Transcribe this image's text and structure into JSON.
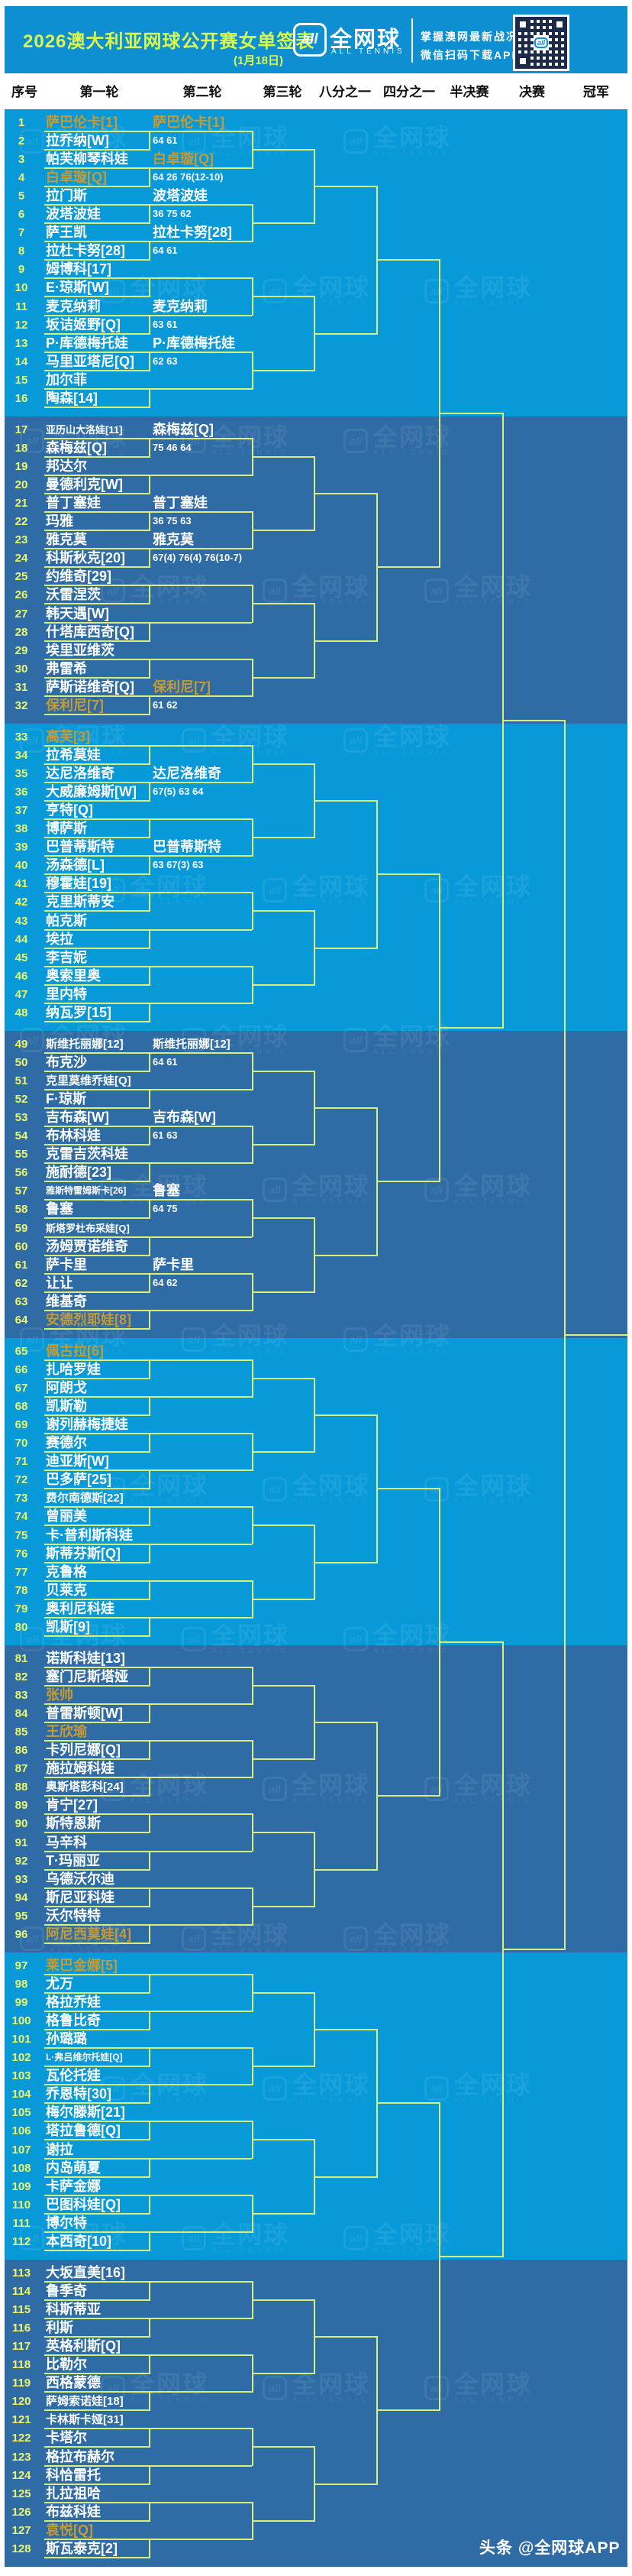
{
  "meta": {
    "title": "2026澳大利亚网球公开赛女单签表",
    "date_note": "(1月18日)"
  },
  "logo": {
    "icon": "all",
    "brand": "全网球",
    "brand_sub": "ALL TENNIS",
    "tagline1": "掌握澳网最新战况",
    "tagline2": "微信扫码下载APP"
  },
  "footer": {
    "credit": "头条 @全网球APP"
  },
  "columns": [
    "序号",
    "第一轮",
    "第二轮",
    "第三轮",
    "八分之一",
    "四分之一",
    "半决赛",
    "决赛",
    "冠军"
  ],
  "colors": {
    "header_bg": "#0d8fd1",
    "band_light": "#0899d8",
    "band_dark": "#2f6ca6",
    "line": "#d9ef7d",
    "number": "#eef767",
    "text": "#ffffff",
    "gold": "#c79b31",
    "title": "#dcf84a",
    "column_text": "#111111"
  },
  "bracket": {
    "players": [
      {
        "n": 1,
        "name": "萨巴伦卡[1]",
        "gold": true
      },
      {
        "n": 2,
        "name": "拉乔纳[W]",
        "gold": false
      },
      {
        "n": 3,
        "name": "帕芙柳琴科娃",
        "gold": false
      },
      {
        "n": 4,
        "name": "白卓璇[Q]",
        "gold": true
      },
      {
        "n": 5,
        "name": "拉门斯",
        "gold": false
      },
      {
        "n": 6,
        "name": "波塔波娃",
        "gold": false
      },
      {
        "n": 7,
        "name": "萨王凯",
        "gold": false
      },
      {
        "n": 8,
        "name": "拉杜卡努[28]",
        "gold": false
      },
      {
        "n": 9,
        "name": "姆博科[17]",
        "gold": false
      },
      {
        "n": 10,
        "name": "E·琼斯[W]",
        "gold": false
      },
      {
        "n": 11,
        "name": "麦克纳莉",
        "gold": false
      },
      {
        "n": 12,
        "name": "坂诘姬野[Q]",
        "gold": false
      },
      {
        "n": 13,
        "name": "P·库德梅托娃",
        "gold": false
      },
      {
        "n": 14,
        "name": "马里亚塔尼[Q]",
        "gold": false
      },
      {
        "n": 15,
        "name": "加尔菲",
        "gold": false
      },
      {
        "n": 16,
        "name": "陶森[14]",
        "gold": false
      },
      {
        "n": 17,
        "name": "亚历山大洛娃[11]",
        "gold": false
      },
      {
        "n": 18,
        "name": "森梅兹[Q]",
        "gold": false
      },
      {
        "n": 19,
        "name": "邦达尔",
        "gold": false
      },
      {
        "n": 20,
        "name": "曼德利克[W]",
        "gold": false
      },
      {
        "n": 21,
        "name": "普丁塞娃",
        "gold": false
      },
      {
        "n": 22,
        "name": "玛雅",
        "gold": false
      },
      {
        "n": 23,
        "name": "雅克莫",
        "gold": false
      },
      {
        "n": 24,
        "name": "科斯秋克[20]",
        "gold": false
      },
      {
        "n": 25,
        "name": "约维奇[29]",
        "gold": false
      },
      {
        "n": 26,
        "name": "沃雷涅茨",
        "gold": false
      },
      {
        "n": 27,
        "name": "韩天遇[W]",
        "gold": false
      },
      {
        "n": 28,
        "name": "什塔库西奇[Q]",
        "gold": false
      },
      {
        "n": 29,
        "name": "埃里亚维茨",
        "gold": false
      },
      {
        "n": 30,
        "name": "弗雷希",
        "gold": false
      },
      {
        "n": 31,
        "name": "萨斯诺维奇[Q]",
        "gold": false
      },
      {
        "n": 32,
        "name": "保利尼[7]",
        "gold": true
      },
      {
        "n": 33,
        "name": "高芙[3]",
        "gold": true
      },
      {
        "n": 34,
        "name": "拉希莫娃",
        "gold": false
      },
      {
        "n": 35,
        "name": "达尼洛维奇",
        "gold": false
      },
      {
        "n": 36,
        "name": "大威廉姆斯[W]",
        "gold": false
      },
      {
        "n": 37,
        "name": "亨特[Q]",
        "gold": false
      },
      {
        "n": 38,
        "name": "博萨斯",
        "gold": false
      },
      {
        "n": 39,
        "name": "巴普蒂斯特",
        "gold": false
      },
      {
        "n": 40,
        "name": "汤森德[L]",
        "gold": false
      },
      {
        "n": 41,
        "name": "穆霍娃[19]",
        "gold": false
      },
      {
        "n": 42,
        "name": "克里斯蒂安",
        "gold": false
      },
      {
        "n": 43,
        "name": "帕克斯",
        "gold": false
      },
      {
        "n": 44,
        "name": "埃拉",
        "gold": false
      },
      {
        "n": 45,
        "name": "李吉妮",
        "gold": false
      },
      {
        "n": 46,
        "name": "奥索里奥",
        "gold": false
      },
      {
        "n": 47,
        "name": "里内特",
        "gold": false
      },
      {
        "n": 48,
        "name": "纳瓦罗[15]",
        "gold": false
      },
      {
        "n": 49,
        "name": "斯维托丽娜[12]",
        "gold": false
      },
      {
        "n": 50,
        "name": "布克沙",
        "gold": false
      },
      {
        "n": 51,
        "name": "克里莫维乔娃[Q]",
        "gold": false
      },
      {
        "n": 52,
        "name": "F·琼斯",
        "gold": false
      },
      {
        "n": 53,
        "name": "吉布森[W]",
        "gold": false
      },
      {
        "n": 54,
        "name": "布林科娃",
        "gold": false
      },
      {
        "n": 55,
        "name": "克雷吉茨科娃",
        "gold": false
      },
      {
        "n": 56,
        "name": "施耐德[23]",
        "gold": false
      },
      {
        "n": 57,
        "name": "雅斯特雷姆斯卡[26]",
        "gold": false
      },
      {
        "n": 58,
        "name": "鲁塞",
        "gold": false
      },
      {
        "n": 59,
        "name": "斯塔罗杜布采娃[Q]",
        "gold": false
      },
      {
        "n": 60,
        "name": "汤姆贾诺维奇",
        "gold": false
      },
      {
        "n": 61,
        "name": "萨卡里",
        "gold": false
      },
      {
        "n": 62,
        "name": "让让",
        "gold": false
      },
      {
        "n": 63,
        "name": "维基奇",
        "gold": false
      },
      {
        "n": 64,
        "name": "安德烈耶娃[8]",
        "gold": true
      },
      {
        "n": 65,
        "name": "佩古拉[6]",
        "gold": true
      },
      {
        "n": 66,
        "name": "扎哈罗娃",
        "gold": false
      },
      {
        "n": 67,
        "name": "阿朗戈",
        "gold": false
      },
      {
        "n": 68,
        "name": "凯斯勒",
        "gold": false
      },
      {
        "n": 69,
        "name": "谢列赫梅捷娃",
        "gold": false
      },
      {
        "n": 70,
        "name": "赛德尔",
        "gold": false
      },
      {
        "n": 71,
        "name": "迪亚斯[W]",
        "gold": false
      },
      {
        "n": 72,
        "name": "巴多萨[25]",
        "gold": false
      },
      {
        "n": 73,
        "name": "费尔南德斯[22]",
        "gold": false
      },
      {
        "n": 74,
        "name": "曾丽美",
        "gold": false
      },
      {
        "n": 75,
        "name": "卡·普利斯科娃",
        "gold": false
      },
      {
        "n": 76,
        "name": "斯蒂芬斯[Q]",
        "gold": false
      },
      {
        "n": 77,
        "name": "克鲁格",
        "gold": false
      },
      {
        "n": 78,
        "name": "贝莱克",
        "gold": false
      },
      {
        "n": 79,
        "name": "奥利尼科娃",
        "gold": false
      },
      {
        "n": 80,
        "name": "凯斯[9]",
        "gold": false
      },
      {
        "n": 81,
        "name": "诺斯科娃[13]",
        "gold": false
      },
      {
        "n": 82,
        "name": "塞门尼斯塔娅",
        "gold": false
      },
      {
        "n": 83,
        "name": "张帅",
        "gold": true
      },
      {
        "n": 84,
        "name": "普雷斯顿[W]",
        "gold": false
      },
      {
        "n": 85,
        "name": "王欣瑜",
        "gold": true
      },
      {
        "n": 86,
        "name": "卡列尼娜[Q]",
        "gold": false
      },
      {
        "n": 87,
        "name": "施拉姆科娃",
        "gold": false
      },
      {
        "n": 88,
        "name": "奥斯塔彭科[24]",
        "gold": false
      },
      {
        "n": 89,
        "name": "肯宁[27]",
        "gold": false
      },
      {
        "n": 90,
        "name": "斯特恩斯",
        "gold": false
      },
      {
        "n": 91,
        "name": "马辛科",
        "gold": false
      },
      {
        "n": 92,
        "name": "T·玛丽亚",
        "gold": false
      },
      {
        "n": 93,
        "name": "乌德沃尔迪",
        "gold": false
      },
      {
        "n": 94,
        "name": "斯尼亚科娃",
        "gold": false
      },
      {
        "n": 95,
        "name": "沃尔特特",
        "gold": false
      },
      {
        "n": 96,
        "name": "阿尼西莫娃[4]",
        "gold": true
      },
      {
        "n": 97,
        "name": "莱巴金娜[5]",
        "gold": true
      },
      {
        "n": 98,
        "name": "尤万",
        "gold": false
      },
      {
        "n": 99,
        "name": "格拉乔娃",
        "gold": false
      },
      {
        "n": 100,
        "name": "格鲁比奇",
        "gold": false
      },
      {
        "n": 101,
        "name": "孙璐璐",
        "gold": false
      },
      {
        "n": 102,
        "name": "L·弗吕维尔托娃[Q]",
        "gold": false
      },
      {
        "n": 103,
        "name": "瓦伦托娃",
        "gold": false
      },
      {
        "n": 104,
        "name": "乔恩特[30]",
        "gold": false
      },
      {
        "n": 105,
        "name": "梅尔滕斯[21]",
        "gold": false
      },
      {
        "n": 106,
        "name": "塔拉鲁德[Q]",
        "gold": false
      },
      {
        "n": 107,
        "name": "谢拉",
        "gold": false
      },
      {
        "n": 108,
        "name": "内岛萌夏",
        "gold": false
      },
      {
        "n": 109,
        "name": "卡萨金娜",
        "gold": false
      },
      {
        "n": 110,
        "name": "巴图科娃[Q]",
        "gold": false
      },
      {
        "n": 111,
        "name": "博尔特",
        "gold": false
      },
      {
        "n": 112,
        "name": "本西奇[10]",
        "gold": false
      },
      {
        "n": 113,
        "name": "大坂直美[16]",
        "gold": false
      },
      {
        "n": 114,
        "name": "鲁季奇",
        "gold": false
      },
      {
        "n": 115,
        "name": "科斯蒂亚",
        "gold": false
      },
      {
        "n": 116,
        "name": "利斯",
        "gold": false
      },
      {
        "n": 117,
        "name": "英格利斯[Q]",
        "gold": false
      },
      {
        "n": 118,
        "name": "比勒尔",
        "gold": false
      },
      {
        "n": 119,
        "name": "西格蒙德",
        "gold": false
      },
      {
        "n": 120,
        "name": "萨姆索诺娃[18]",
        "gold": false
      },
      {
        "n": 121,
        "name": "卡林斯卡娅[31]",
        "gold": false
      },
      {
        "n": 122,
        "name": "卡塔尔",
        "gold": false
      },
      {
        "n": 123,
        "name": "格拉布赫尔",
        "gold": false
      },
      {
        "n": 124,
        "name": "科恰雷托",
        "gold": false
      },
      {
        "n": 125,
        "name": "扎拉祖哈",
        "gold": false
      },
      {
        "n": 126,
        "name": "布兹科娃",
        "gold": false
      },
      {
        "n": 127,
        "name": "袁悦[Q]",
        "gold": true
      },
      {
        "n": 128,
        "name": "斯瓦泰克[2]",
        "gold": false
      }
    ],
    "round2_winners": [
      {
        "match": 1,
        "name": "萨巴伦卡[1]",
        "score": "64 61",
        "gold": true
      },
      {
        "match": 2,
        "name": "白卓璇[Q]",
        "score": "64 26 76(12-10)",
        "gold": true
      },
      {
        "match": 3,
        "name": "波塔波娃",
        "score": "36 75 62",
        "gold": false
      },
      {
        "match": 4,
        "name": "拉杜卡努[28]",
        "score": "64 61",
        "gold": false
      },
      {
        "match": 6,
        "name": "麦克纳莉",
        "score": "63 61",
        "gold": false
      },
      {
        "match": 7,
        "name": "P·库德梅托娃",
        "score": "62 63",
        "gold": false
      },
      {
        "match": 9,
        "name": "森梅兹[Q]",
        "score": "75 46 64",
        "gold": false
      },
      {
        "match": 11,
        "name": "普丁塞娃",
        "score": "36 75 63",
        "gold": false
      },
      {
        "match": 12,
        "name": "雅克莫",
        "score": "67(4) 76(4) 76(10-7)",
        "gold": false
      },
      {
        "match": 16,
        "name": "保利尼[7]",
        "score": "61 62",
        "gold": true
      },
      {
        "match": 18,
        "name": "达尼洛维奇",
        "score": "67(5) 63 64",
        "gold": false
      },
      {
        "match": 20,
        "name": "巴普蒂斯特",
        "score": "63 67(3) 63",
        "gold": false
      },
      {
        "match": 25,
        "name": "斯维托丽娜[12]",
        "score": "64 61",
        "gold": false
      },
      {
        "match": 27,
        "name": "吉布森[W]",
        "score": "61 63",
        "gold": false
      },
      {
        "match": 29,
        "name": "鲁塞",
        "score": "64 75",
        "gold": false
      },
      {
        "match": 31,
        "name": "萨卡里",
        "score": "64 62",
        "gold": false
      }
    ]
  }
}
